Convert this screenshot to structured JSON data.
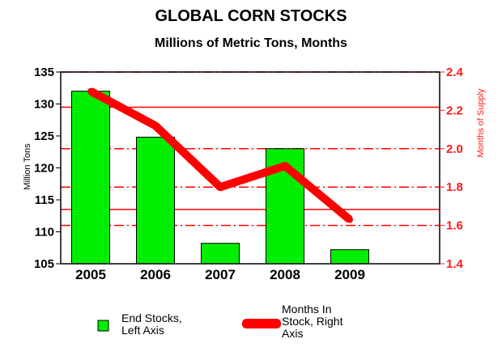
{
  "chart_data": {
    "type": "bar+line",
    "title": "GLOBAL CORN STOCKS",
    "subtitle": "Millions of Metric Tons, Months",
    "categories": [
      "2005",
      "2006",
      "2007",
      "2008",
      "2009"
    ],
    "series": [
      {
        "name": "End Stocks, Left Axis",
        "name_lines": [
          "End Stocks,",
          "Left Axis"
        ],
        "type": "bar",
        "axis": "left",
        "color": "#00ee00",
        "values": [
          132.0,
          124.8,
          108.2,
          123.0,
          107.2
        ]
      },
      {
        "name": "Months In Stock, Right Axis",
        "name_lines": [
          "Months In",
          "Stock, Right",
          "Axis"
        ],
        "type": "line",
        "axis": "right",
        "color": "#ff0000",
        "values": [
          2.3,
          2.12,
          1.8,
          1.91,
          1.63
        ]
      }
    ],
    "y_left": {
      "label": "Million Tons",
      "ylim": [
        105,
        135
      ],
      "ticks": [
        "135",
        "130",
        "125",
        "120",
        "115",
        "110",
        "105"
      ]
    },
    "y_right": {
      "label": "Months of Supply",
      "ylim": [
        1.4,
        2.4
      ],
      "ticks": [
        "2.4",
        "2.2",
        "2.0",
        "1.8",
        "1.6",
        "1.4"
      ]
    },
    "reference_lines_left": [
      129.5,
      113.5
    ],
    "gridlines_right": [
      2.0,
      1.8,
      1.6
    ],
    "legend_position": "bottom",
    "colors": {
      "bar": "#00ee00",
      "line": "#ff0000",
      "right_axis": "#ff1a1a"
    }
  }
}
